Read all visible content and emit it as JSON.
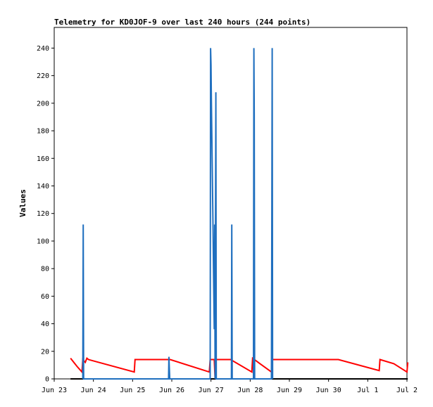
{
  "chart_data": {
    "type": "line",
    "title": "Telemetry for KD0JOF-9 over last 240 hours (244 points)",
    "xlabel": "",
    "ylabel": "Values",
    "ylim": [
      0,
      255
    ],
    "yticks": [
      0,
      20,
      40,
      60,
      80,
      100,
      120,
      140,
      160,
      180,
      200,
      220,
      240
    ],
    "xlim": [
      "2023-06-23T00:00",
      "2023-07-02T00:00"
    ],
    "xticks": [
      "Jun 23",
      "Jun 24",
      "Jun 25",
      "Jun 26",
      "Jun 27",
      "Jun 28",
      "Jun 29",
      "Jun 30",
      "Jul 1",
      "Jul 2"
    ],
    "grid": false,
    "series": [
      {
        "color": "#ff0000",
        "points": [
          [
            "2023-06-23T10:00",
            15
          ],
          [
            "2023-06-23T14:00",
            9
          ],
          [
            "2023-06-23T17:00",
            5
          ],
          [
            "2023-06-23T17:30",
            14
          ],
          [
            "2023-06-23T19:00",
            12
          ],
          [
            "2023-06-23T20:00",
            15
          ],
          [
            "2023-06-23T21:00",
            14
          ],
          [
            "2023-06-25T01:00",
            5
          ],
          [
            "2023-06-25T01:30",
            14
          ],
          [
            "2023-06-25T23:00",
            14
          ],
          [
            "2023-06-26T23:00",
            5
          ],
          [
            "2023-06-26T23:30",
            14
          ],
          [
            "2023-06-27T02:00",
            14
          ],
          [
            "2023-06-27T02:30",
            0
          ],
          [
            "2023-06-27T03:00",
            14
          ],
          [
            "2023-06-27T12:00",
            14
          ],
          [
            "2023-06-28T01:00",
            5
          ],
          [
            "2023-06-28T01:30",
            15
          ],
          [
            "2023-06-28T06:00",
            11
          ],
          [
            "2023-06-28T13:00",
            5
          ],
          [
            "2023-06-28T13:30",
            14
          ],
          [
            "2023-06-30T06:00",
            14
          ],
          [
            "2023-07-01T07:00",
            6
          ],
          [
            "2023-07-01T07:30",
            14
          ],
          [
            "2023-07-01T16:00",
            11
          ],
          [
            "2023-07-02T00:00",
            5
          ],
          [
            "2023-07-02T00:30",
            12
          ]
        ]
      },
      {
        "color": "#000000",
        "points": [
          [
            "2023-06-23T10:00",
            0
          ],
          [
            "2023-07-02T00:30",
            0
          ]
        ]
      },
      {
        "color": "#1f6fbf",
        "points": [
          [
            "2023-06-23T17:30",
            0
          ],
          [
            "2023-06-23T17:45",
            112
          ],
          [
            "2023-06-23T18:00",
            0
          ],
          [
            "2023-06-25T22:00",
            0
          ],
          [
            "2023-06-25T22:15",
            16
          ],
          [
            "2023-06-25T22:30",
            8
          ],
          [
            "2023-06-25T22:45",
            0
          ],
          [
            "2023-06-26T23:30",
            0
          ],
          [
            "2023-06-26T23:45",
            240
          ],
          [
            "2023-06-27T00:00",
            228
          ],
          [
            "2023-06-27T00:15",
            204
          ],
          [
            "2023-06-27T00:30",
            180
          ],
          [
            "2023-06-27T00:45",
            156
          ],
          [
            "2023-06-27T01:00",
            132
          ],
          [
            "2023-06-27T01:15",
            108
          ],
          [
            "2023-06-27T01:30",
            84
          ],
          [
            "2023-06-27T01:45",
            60
          ],
          [
            "2023-06-27T02:00",
            36
          ],
          [
            "2023-06-27T02:15",
            112
          ],
          [
            "2023-06-27T02:30",
            0
          ],
          [
            "2023-06-27T03:00",
            208
          ],
          [
            "2023-06-27T03:15",
            0
          ],
          [
            "2023-06-27T12:30",
            0
          ],
          [
            "2023-06-27T12:45",
            112
          ],
          [
            "2023-06-27T13:00",
            0
          ],
          [
            "2023-06-28T02:00",
            0
          ],
          [
            "2023-06-28T02:15",
            240
          ],
          [
            "2023-06-28T02:30",
            192
          ],
          [
            "2023-06-28T02:45",
            0
          ],
          [
            "2023-06-28T13:00",
            0
          ],
          [
            "2023-06-28T13:15",
            120
          ],
          [
            "2023-06-28T13:30",
            240
          ],
          [
            "2023-06-28T13:45",
            0
          ]
        ]
      }
    ]
  }
}
